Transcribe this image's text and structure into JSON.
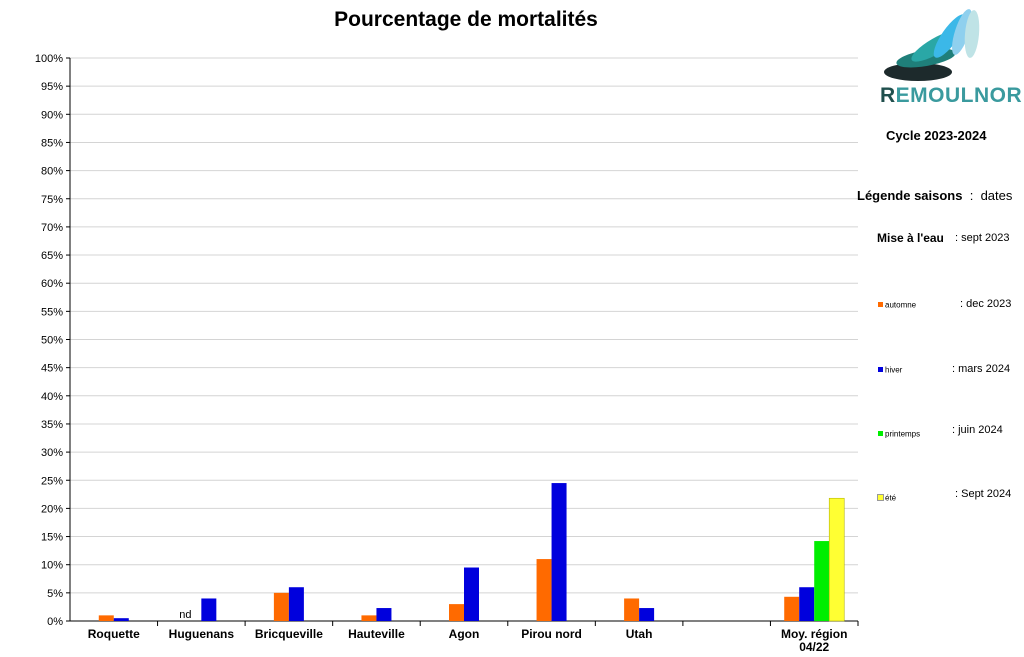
{
  "chart_data": {
    "type": "bar",
    "title": "Pourcentage de mortalités",
    "categories": [
      "Roquette",
      "Huguenans",
      "Bricqueville",
      "Hauteville",
      "Agon",
      "Pirou nord",
      "Utah",
      "",
      "Moy. région 04/22"
    ],
    "series": [
      {
        "name": "automne",
        "color": "#ff6a00",
        "values": [
          1,
          null,
          5,
          1,
          3,
          11,
          4,
          null,
          4.3
        ]
      },
      {
        "name": "hiver",
        "color": "#0000dd",
        "values": [
          0.5,
          4,
          6,
          2.3,
          9.5,
          24.5,
          2.3,
          null,
          6
        ]
      },
      {
        "name": "printemps",
        "color": "#00ee00",
        "values": [
          null,
          null,
          null,
          null,
          null,
          null,
          null,
          null,
          14.2
        ]
      },
      {
        "name": "été",
        "color": "#ffff33",
        "values": [
          null,
          null,
          null,
          null,
          null,
          null,
          null,
          null,
          21.8
        ]
      }
    ],
    "ylim": [
      0,
      100
    ],
    "ytick_step": 5,
    "ytick_suffix": "%",
    "grid": true,
    "annotations": [
      {
        "category": "Huguenans",
        "text": "nd"
      }
    ]
  },
  "brand": {
    "first_letter": "R",
    "rest": "EMOULNOR"
  },
  "cycle": "Cycle 2023-2024",
  "legend": {
    "title": "Légende saisons",
    "separator": ":",
    "dates_label": "dates",
    "mise_label": "Mise à l'eau",
    "mise_date": ": sept 2023",
    "items": [
      {
        "label": "automne",
        "date": ": dec 2023",
        "color": "#ff6a00"
      },
      {
        "label": "hiver",
        "date": ": mars 2024",
        "color": "#0000dd"
      },
      {
        "label": "printemps",
        "date": ":  juin 2024",
        "color": "#00ee00"
      },
      {
        "label": "été",
        "date": ": Sept 2024",
        "color": "#ffff33"
      }
    ]
  }
}
